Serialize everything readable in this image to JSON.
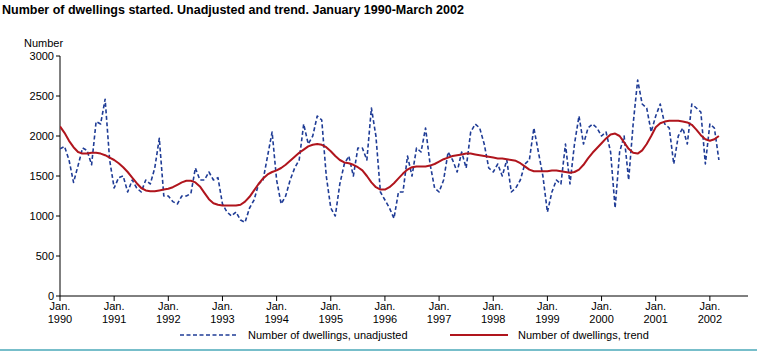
{
  "chart_data": {
    "type": "line",
    "title": "Number of dwellings started. Unadjusted and trend. January 1990-March 2002",
    "y_label": "Number",
    "categories": [
      "Jan. 1990",
      null,
      null,
      null,
      null,
      null,
      null,
      null,
      null,
      null,
      null,
      null,
      "Jan. 1991",
      null,
      null,
      null,
      null,
      null,
      null,
      null,
      null,
      null,
      null,
      null,
      "Jan. 1992",
      null,
      null,
      null,
      null,
      null,
      null,
      null,
      null,
      null,
      null,
      null,
      "Jan. 1993",
      null,
      null,
      null,
      null,
      null,
      null,
      null,
      null,
      null,
      null,
      null,
      "Jan. 1994",
      null,
      null,
      null,
      null,
      null,
      null,
      null,
      null,
      null,
      null,
      null,
      "Jan. 1995",
      null,
      null,
      null,
      null,
      null,
      null,
      null,
      null,
      null,
      null,
      null,
      "Jan. 1996",
      null,
      null,
      null,
      null,
      null,
      null,
      null,
      null,
      null,
      null,
      null,
      "Jan. 1997",
      null,
      null,
      null,
      null,
      null,
      null,
      null,
      null,
      null,
      null,
      null,
      "Jan. 1998",
      null,
      null,
      null,
      null,
      null,
      null,
      null,
      null,
      null,
      null,
      null,
      "Jan. 1999",
      null,
      null,
      null,
      null,
      null,
      null,
      null,
      null,
      null,
      null,
      null,
      "Jan. 2000",
      null,
      null,
      null,
      null,
      null,
      null,
      null,
      null,
      null,
      null,
      null,
      "Jan. 2001",
      null,
      null,
      null,
      null,
      null,
      null,
      null,
      null,
      null,
      null,
      null,
      "Jan. 2002",
      null,
      null
    ],
    "series": [
      {
        "name": "Number of dwellings, unadjusted",
        "color": "#1f3c96",
        "line_style": "dashed",
        "values": [
          1840,
          1870,
          1700,
          1420,
          1630,
          1850,
          1820,
          1640,
          2180,
          2150,
          2460,
          1700,
          1350,
          1480,
          1500,
          1300,
          1450,
          1350,
          1300,
          1450,
          1400,
          1600,
          1970,
          1250,
          1250,
          1180,
          1150,
          1250,
          1250,
          1280,
          1600,
          1450,
          1450,
          1550,
          1450,
          1480,
          1150,
          1050,
          1000,
          1050,
          950,
          920,
          1100,
          1200,
          1400,
          1450,
          1750,
          2050,
          1450,
          1150,
          1250,
          1450,
          1600,
          1700,
          2150,
          1900,
          2000,
          2250,
          2200,
          1500,
          1100,
          1000,
          1400,
          1650,
          1750,
          1500,
          1850,
          1850,
          1700,
          2350,
          2000,
          1300,
          1200,
          1100,
          970,
          1300,
          1300,
          1750,
          1500,
          1850,
          1800,
          2100,
          1650,
          1350,
          1300,
          1450,
          1800,
          1700,
          1550,
          1800,
          1600,
          2050,
          2150,
          2100,
          1900,
          1600,
          1550,
          1650,
          1500,
          1700,
          1300,
          1350,
          1450,
          1650,
          1700,
          2100,
          1800,
          1500,
          1050,
          1300,
          1450,
          1400,
          1900,
          1400,
          1900,
          2250,
          1900,
          2100,
          2150,
          2100,
          2000,
          2050,
          1800,
          1100,
          1800,
          2000,
          1450,
          2150,
          2700,
          2400,
          2350,
          2050,
          2250,
          2400,
          2150,
          2100,
          1650,
          2000,
          2100,
          1900,
          2400,
          2350,
          2300,
          1650,
          2150,
          2100,
          1700
        ]
      },
      {
        "name": "Number of dwellings, trend",
        "color": "#b0151d",
        "line_style": "solid",
        "values": [
          2120,
          2040,
          1940,
          1860,
          1800,
          1780,
          1780,
          1790,
          1790,
          1780,
          1760,
          1730,
          1700,
          1660,
          1610,
          1550,
          1480,
          1410,
          1350,
          1320,
          1310,
          1310,
          1320,
          1330,
          1340,
          1360,
          1390,
          1420,
          1440,
          1440,
          1420,
          1370,
          1290,
          1210,
          1160,
          1140,
          1130,
          1130,
          1130,
          1130,
          1140,
          1180,
          1240,
          1320,
          1400,
          1470,
          1520,
          1550,
          1570,
          1600,
          1640,
          1690,
          1740,
          1790,
          1830,
          1870,
          1890,
          1900,
          1890,
          1860,
          1810,
          1750,
          1700,
          1670,
          1660,
          1640,
          1610,
          1570,
          1500,
          1420,
          1360,
          1330,
          1330,
          1360,
          1410,
          1470,
          1530,
          1580,
          1610,
          1620,
          1620,
          1620,
          1630,
          1650,
          1680,
          1710,
          1730,
          1750,
          1760,
          1770,
          1780,
          1780,
          1770,
          1760,
          1750,
          1740,
          1730,
          1720,
          1720,
          1710,
          1700,
          1690,
          1660,
          1620,
          1580,
          1560,
          1560,
          1560,
          1560,
          1570,
          1570,
          1560,
          1550,
          1540,
          1550,
          1580,
          1640,
          1720,
          1790,
          1850,
          1910,
          1970,
          2020,
          2030,
          2000,
          1920,
          1840,
          1790,
          1780,
          1820,
          1900,
          2000,
          2110,
          2160,
          2180,
          2190,
          2190,
          2190,
          2180,
          2170,
          2140,
          2080,
          2010,
          1960,
          1940,
          1960,
          2000
        ]
      }
    ],
    "ylim": [
      0,
      3000
    ],
    "yticks": [
      0,
      500,
      1000,
      1500,
      2000,
      2500,
      3000
    ],
    "grid": false,
    "legend": "bottom"
  }
}
